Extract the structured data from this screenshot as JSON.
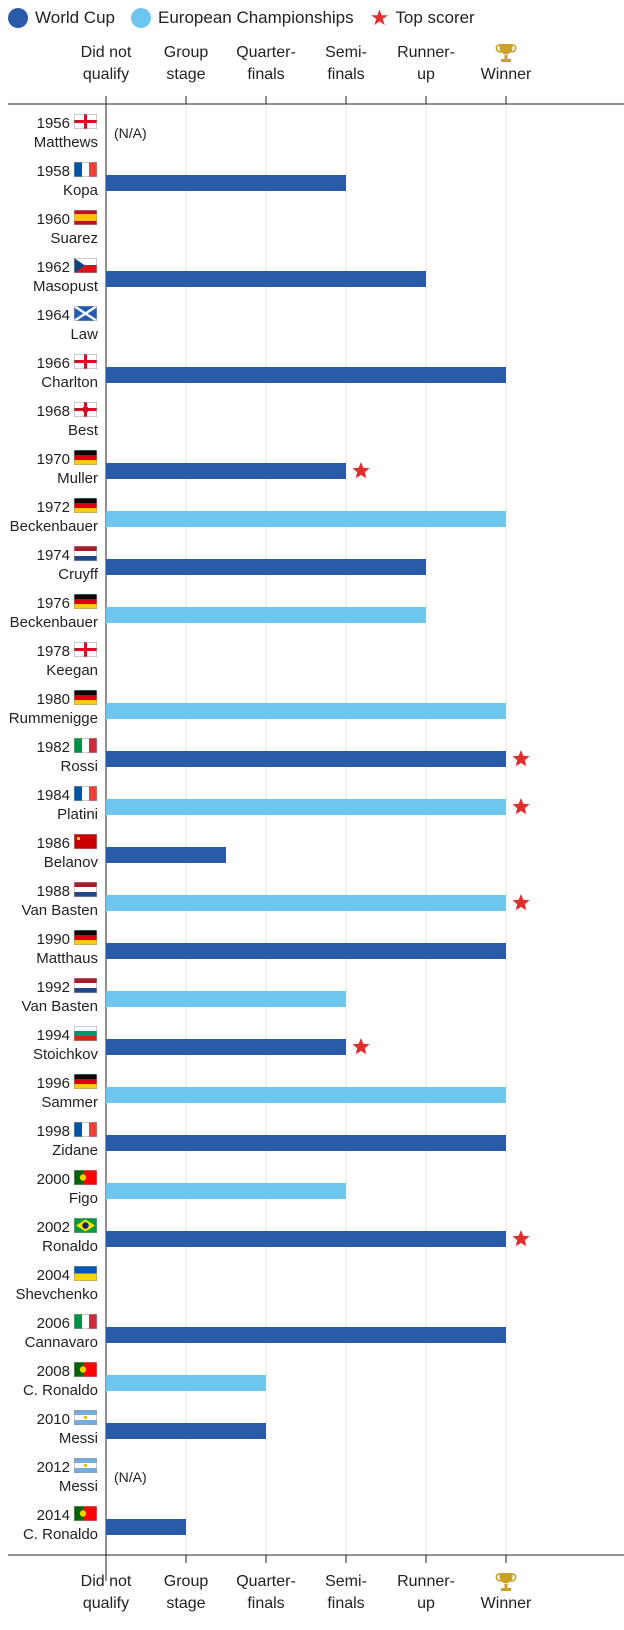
{
  "legend": {
    "world_cup": "World Cup",
    "euro": "European Championships",
    "top_scorer": "Top scorer"
  },
  "colors": {
    "world_cup": "#2a5ba8",
    "euro": "#6ec6ef",
    "top_scorer": "#e03131",
    "trophy": "#c9a227"
  },
  "chart_data": {
    "type": "bar",
    "orientation": "horizontal",
    "stages": [
      [
        "Did not",
        "qualify"
      ],
      [
        "Group",
        "stage"
      ],
      [
        "Quarter-",
        "finals"
      ],
      [
        "Semi-",
        "finals"
      ],
      [
        "Runner-",
        "up"
      ],
      [
        "Winner"
      ]
    ],
    "winner_icon": "trophy-icon",
    "grid": true,
    "na_text": "(N/A)",
    "rows": [
      {
        "year": "1956",
        "player": "Matthews",
        "flag": "england",
        "tournament": null,
        "stage": null
      },
      {
        "year": "1958",
        "player": "Kopa",
        "flag": "france",
        "tournament": "world_cup",
        "stage": 3
      },
      {
        "year": "1960",
        "player": "Suarez",
        "flag": "spain",
        "tournament": "euro",
        "stage": 0
      },
      {
        "year": "1962",
        "player": "Masopust",
        "flag": "czech",
        "tournament": "world_cup",
        "stage": 4
      },
      {
        "year": "1964",
        "player": "Law",
        "flag": "scotland",
        "tournament": "euro",
        "stage": 0
      },
      {
        "year": "1966",
        "player": "Charlton",
        "flag": "england",
        "tournament": "world_cup",
        "stage": 5
      },
      {
        "year": "1968",
        "player": "Best",
        "flag": "northern_ireland",
        "tournament": "euro",
        "stage": 0
      },
      {
        "year": "1970",
        "player": "Muller",
        "flag": "germany",
        "tournament": "world_cup",
        "stage": 3,
        "top_scorer": true
      },
      {
        "year": "1972",
        "player": "Beckenbauer",
        "flag": "germany",
        "tournament": "euro",
        "stage": 5
      },
      {
        "year": "1974",
        "player": "Cruyff",
        "flag": "netherlands",
        "tournament": "world_cup",
        "stage": 4
      },
      {
        "year": "1976",
        "player": "Beckenbauer",
        "flag": "germany",
        "tournament": "euro",
        "stage": 4
      },
      {
        "year": "1978",
        "player": "Keegan",
        "flag": "england",
        "tournament": "world_cup",
        "stage": 0
      },
      {
        "year": "1980",
        "player": "Rummenigge",
        "flag": "germany",
        "tournament": "euro",
        "stage": 5
      },
      {
        "year": "1982",
        "player": "Rossi",
        "flag": "italy",
        "tournament": "world_cup",
        "stage": 5,
        "top_scorer": true
      },
      {
        "year": "1984",
        "player": "Platini",
        "flag": "france",
        "tournament": "euro",
        "stage": 5,
        "top_scorer": true
      },
      {
        "year": "1986",
        "player": "Belanov",
        "flag": "ussr",
        "tournament": "world_cup",
        "stage": 1.5
      },
      {
        "year": "1988",
        "player": "Van Basten",
        "flag": "netherlands",
        "tournament": "euro",
        "stage": 5,
        "top_scorer": true
      },
      {
        "year": "1990",
        "player": "Matthaus",
        "flag": "germany",
        "tournament": "world_cup",
        "stage": 5
      },
      {
        "year": "1992",
        "player": "Van Basten",
        "flag": "netherlands",
        "tournament": "euro",
        "stage": 3
      },
      {
        "year": "1994",
        "player": "Stoichkov",
        "flag": "bulgaria",
        "tournament": "world_cup",
        "stage": 3,
        "top_scorer": true
      },
      {
        "year": "1996",
        "player": "Sammer",
        "flag": "germany",
        "tournament": "euro",
        "stage": 5
      },
      {
        "year": "1998",
        "player": "Zidane",
        "flag": "france",
        "tournament": "world_cup",
        "stage": 5
      },
      {
        "year": "2000",
        "player": "Figo",
        "flag": "portugal",
        "tournament": "euro",
        "stage": 3
      },
      {
        "year": "2002",
        "player": "Ronaldo",
        "flag": "brazil",
        "tournament": "world_cup",
        "stage": 5,
        "top_scorer": true
      },
      {
        "year": "2004",
        "player": "Shevchenko",
        "flag": "ukraine",
        "tournament": "euro",
        "stage": 0
      },
      {
        "year": "2006",
        "player": "Cannavaro",
        "flag": "italy",
        "tournament": "world_cup",
        "stage": 5
      },
      {
        "year": "2008",
        "player": "C. Ronaldo",
        "flag": "portugal",
        "tournament": "euro",
        "stage": 2
      },
      {
        "year": "2010",
        "player": "Messi",
        "flag": "argentina",
        "tournament": "world_cup",
        "stage": 2
      },
      {
        "year": "2012",
        "player": "Messi",
        "flag": "argentina",
        "tournament": null,
        "stage": null
      },
      {
        "year": "2014",
        "player": "C. Ronaldo",
        "flag": "portugal",
        "tournament": "world_cup",
        "stage": 1
      }
    ]
  }
}
